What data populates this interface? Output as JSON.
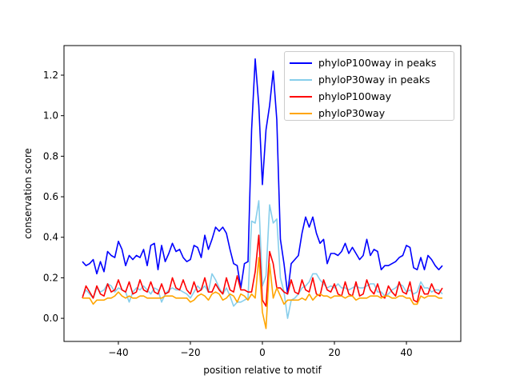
{
  "chart_data": {
    "type": "line",
    "title": "",
    "xlabel": "position relative to motif",
    "ylabel": "conservation score",
    "xlim": [
      -55.1,
      55.1
    ],
    "ylim": [
      -0.114,
      1.346
    ],
    "xticks": [
      -40,
      -20,
      0,
      20,
      40
    ],
    "yticks": [
      0.0,
      0.2,
      0.4,
      0.6,
      0.8,
      1.0,
      1.2
    ],
    "legend_position": "top-right",
    "x_start": -50,
    "x_end": 50,
    "series": [
      {
        "name": "phyloP100way in peaks",
        "color": "#0000ff",
        "values": [
          0.28,
          0.26,
          0.27,
          0.29,
          0.22,
          0.28,
          0.23,
          0.33,
          0.31,
          0.3,
          0.38,
          0.34,
          0.26,
          0.31,
          0.29,
          0.31,
          0.3,
          0.34,
          0.26,
          0.36,
          0.37,
          0.24,
          0.36,
          0.28,
          0.32,
          0.37,
          0.33,
          0.34,
          0.3,
          0.28,
          0.29,
          0.36,
          0.35,
          0.3,
          0.41,
          0.34,
          0.39,
          0.45,
          0.43,
          0.45,
          0.42,
          0.34,
          0.27,
          0.26,
          0.15,
          0.27,
          0.28,
          0.93,
          1.28,
          1.05,
          0.66,
          0.93,
          1.05,
          1.22,
          0.98,
          0.39,
          0.27,
          0.12,
          0.27,
          0.29,
          0.31,
          0.42,
          0.5,
          0.45,
          0.5,
          0.42,
          0.37,
          0.39,
          0.27,
          0.32,
          0.32,
          0.31,
          0.33,
          0.37,
          0.32,
          0.35,
          0.32,
          0.29,
          0.31,
          0.39,
          0.31,
          0.34,
          0.33,
          0.24,
          0.26,
          0.26,
          0.27,
          0.28,
          0.3,
          0.31,
          0.36,
          0.35,
          0.25,
          0.24,
          0.3,
          0.24,
          0.31,
          0.29,
          0.26,
          0.24,
          0.26
        ]
      },
      {
        "name": "phyloP30way in peaks",
        "color": "#87ceeb",
        "values": [
          0.11,
          0.14,
          0.12,
          0.1,
          0.15,
          0.13,
          0.14,
          0.17,
          0.16,
          0.13,
          0.15,
          0.14,
          0.13,
          0.08,
          0.13,
          0.15,
          0.14,
          0.16,
          0.14,
          0.12,
          0.15,
          0.14,
          0.08,
          0.12,
          0.14,
          0.15,
          0.14,
          0.14,
          0.13,
          0.12,
          0.1,
          0.13,
          0.16,
          0.14,
          0.16,
          0.13,
          0.22,
          0.19,
          0.15,
          0.12,
          0.15,
          0.11,
          0.06,
          0.08,
          0.08,
          0.09,
          0.1,
          0.48,
          0.47,
          0.58,
          0.16,
          0.21,
          0.56,
          0.47,
          0.49,
          0.2,
          0.13,
          0.0,
          0.09,
          0.1,
          0.12,
          0.15,
          0.16,
          0.18,
          0.22,
          0.22,
          0.19,
          0.17,
          0.15,
          0.16,
          0.15,
          0.17,
          0.15,
          0.15,
          0.14,
          0.15,
          0.16,
          0.15,
          0.15,
          0.16,
          0.17,
          0.17,
          0.13,
          0.13,
          0.11,
          0.12,
          0.14,
          0.15,
          0.17,
          0.16,
          0.13,
          0.14,
          0.12,
          0.13,
          0.18,
          0.15,
          0.15,
          0.13,
          0.14,
          0.14,
          0.12
        ]
      },
      {
        "name": "phyloP100way",
        "color": "#ff0000",
        "values": [
          0.1,
          0.16,
          0.13,
          0.1,
          0.16,
          0.12,
          0.11,
          0.17,
          0.13,
          0.14,
          0.19,
          0.14,
          0.13,
          0.18,
          0.12,
          0.13,
          0.19,
          0.14,
          0.13,
          0.18,
          0.13,
          0.12,
          0.17,
          0.12,
          0.13,
          0.2,
          0.15,
          0.14,
          0.19,
          0.14,
          0.12,
          0.18,
          0.13,
          0.14,
          0.2,
          0.13,
          0.13,
          0.17,
          0.14,
          0.12,
          0.2,
          0.14,
          0.13,
          0.21,
          0.14,
          0.14,
          0.13,
          0.13,
          0.23,
          0.41,
          0.09,
          0.06,
          0.33,
          0.27,
          0.15,
          0.15,
          0.13,
          0.12,
          0.19,
          0.13,
          0.12,
          0.19,
          0.14,
          0.13,
          0.2,
          0.12,
          0.11,
          0.19,
          0.14,
          0.13,
          0.17,
          0.12,
          0.11,
          0.18,
          0.12,
          0.11,
          0.18,
          0.11,
          0.12,
          0.19,
          0.14,
          0.12,
          0.17,
          0.11,
          0.1,
          0.16,
          0.13,
          0.11,
          0.18,
          0.13,
          0.12,
          0.18,
          0.09,
          0.08,
          0.16,
          0.12,
          0.12,
          0.17,
          0.13,
          0.12,
          0.15
        ]
      },
      {
        "name": "phyloP30way",
        "color": "#ffa500",
        "values": [
          0.1,
          0.1,
          0.1,
          0.07,
          0.09,
          0.09,
          0.09,
          0.1,
          0.1,
          0.11,
          0.13,
          0.11,
          0.1,
          0.11,
          0.1,
          0.1,
          0.11,
          0.11,
          0.1,
          0.1,
          0.1,
          0.1,
          0.1,
          0.11,
          0.11,
          0.11,
          0.1,
          0.1,
          0.1,
          0.1,
          0.08,
          0.09,
          0.11,
          0.12,
          0.11,
          0.09,
          0.12,
          0.13,
          0.12,
          0.09,
          0.1,
          0.12,
          0.11,
          0.08,
          0.12,
          0.11,
          0.09,
          0.12,
          0.1,
          0.3,
          0.03,
          -0.05,
          0.27,
          0.1,
          0.15,
          0.11,
          0.07,
          0.09,
          0.09,
          0.09,
          0.09,
          0.1,
          0.09,
          0.12,
          0.09,
          0.11,
          0.12,
          0.11,
          0.11,
          0.1,
          0.11,
          0.11,
          0.11,
          0.1,
          0.11,
          0.11,
          0.09,
          0.1,
          0.1,
          0.1,
          0.11,
          0.11,
          0.11,
          0.1,
          0.11,
          0.11,
          0.1,
          0.1,
          0.11,
          0.11,
          0.1,
          0.1,
          0.07,
          0.07,
          0.11,
          0.1,
          0.11,
          0.11,
          0.11,
          0.1,
          0.1
        ]
      }
    ]
  }
}
